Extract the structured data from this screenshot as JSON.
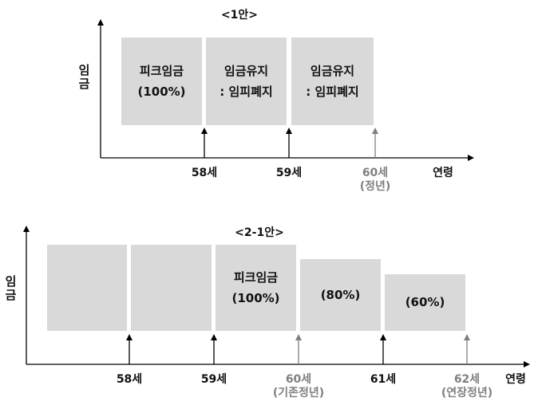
{
  "plan1": {
    "title": "<1안>",
    "y_label": "임금",
    "x_label": "연령",
    "boxes": [
      {
        "line1": "피크임금",
        "line2": "(100%)"
      },
      {
        "line1": "임금유지",
        "line2": ": 임피폐지"
      },
      {
        "line1": "임금유지",
        "line2": ": 임피폐지"
      }
    ],
    "ticks": [
      {
        "label": "58세",
        "sub": ""
      },
      {
        "label": "59세",
        "sub": ""
      },
      {
        "label": "60세",
        "sub": "(정년)"
      }
    ]
  },
  "plan2": {
    "title": "<2-1안>",
    "y_label": "임금",
    "x_label": "연령",
    "boxes": [
      {
        "line1": "",
        "line2": ""
      },
      {
        "line1": "",
        "line2": ""
      },
      {
        "line1": "피크임금",
        "line2": "(100%)"
      },
      {
        "line1": "(80%)",
        "line2": ""
      },
      {
        "line1": "(60%)",
        "line2": ""
      }
    ],
    "ticks": [
      {
        "label": "58세",
        "sub": ""
      },
      {
        "label": "59세",
        "sub": ""
      },
      {
        "label": "60세",
        "sub": "(기존정년)"
      },
      {
        "label": "61세",
        "sub": ""
      },
      {
        "label": "62세",
        "sub": "(연장정년)"
      }
    ]
  },
  "colors": {
    "box_fill": "#d9d9d9",
    "axis": "#000000",
    "muted": "#7f7f7f"
  }
}
